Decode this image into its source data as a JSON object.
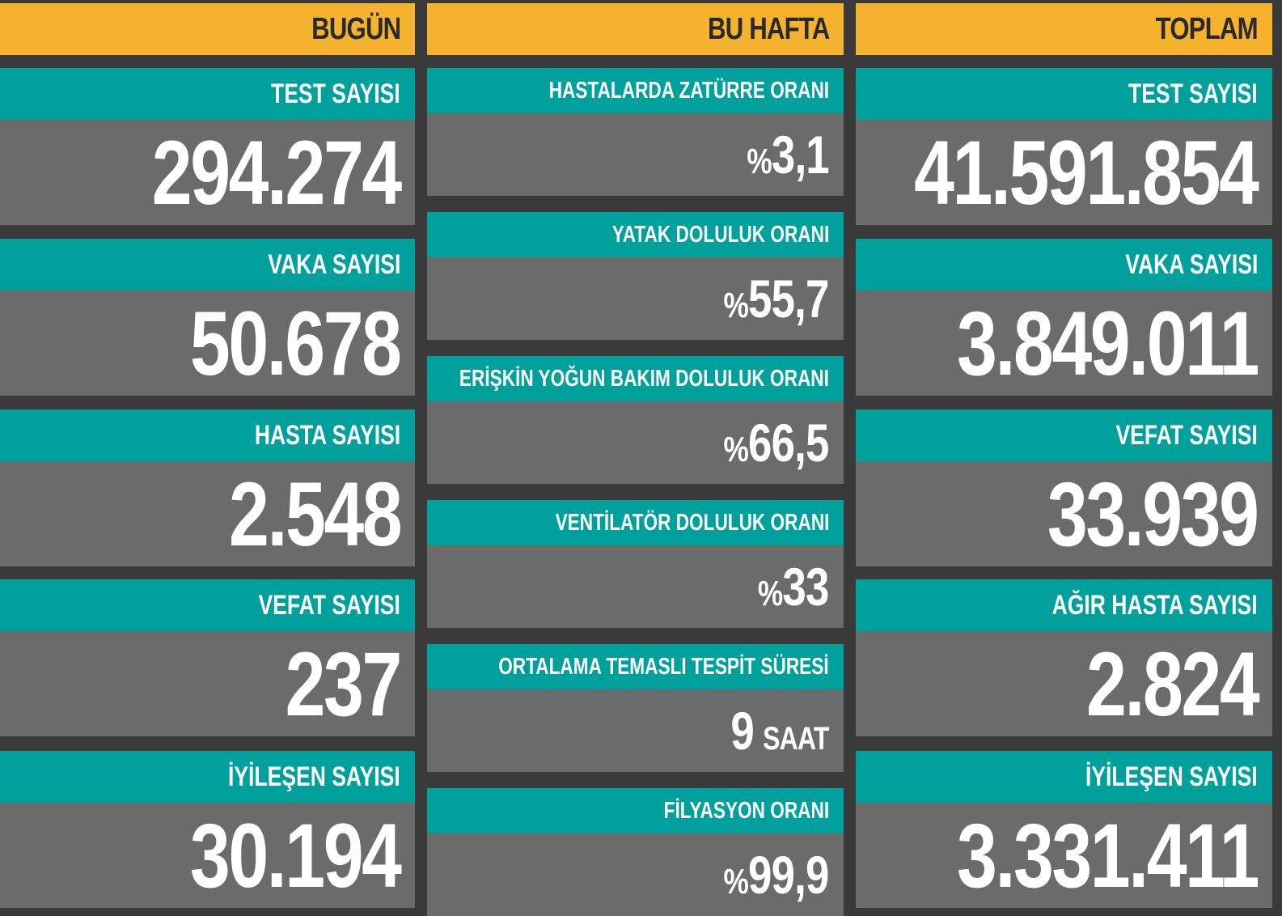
{
  "columns": {
    "today": {
      "title": "BUGÜN",
      "cards": [
        {
          "label": "TEST SAYISI",
          "value": "294.274"
        },
        {
          "label": "VAKA SAYISI",
          "value": "50.678"
        },
        {
          "label": "HASTA SAYISI",
          "value": "2.548"
        },
        {
          "label": "VEFAT SAYISI",
          "value": "237"
        },
        {
          "label": "İYİLEŞEN SAYISI",
          "value": "30.194"
        }
      ]
    },
    "this_week": {
      "title": "BU HAFTA",
      "cards": [
        {
          "label": "HASTALARDA ZATÜRRE ORANI",
          "prefix": "%",
          "value": "3,1"
        },
        {
          "label": "YATAK DOLULUK ORANI",
          "prefix": "%",
          "value": "55,7"
        },
        {
          "label": "ERİŞKİN YOĞUN BAKIM DOLULUK ORANI",
          "prefix": "%",
          "value": "66,5"
        },
        {
          "label": "VENTİLATÖR DOLULUK ORANI",
          "prefix": "%",
          "value": "33"
        },
        {
          "label": "ORTALAMA TEMASLI TESPİT SÜRESİ",
          "value": "9",
          "unit": "SAAT"
        },
        {
          "label": "FİLYASYON ORANI",
          "prefix": "%",
          "value": "99,9"
        }
      ]
    },
    "total": {
      "title": "TOPLAM",
      "cards": [
        {
          "label": "TEST SAYISI",
          "value": "41.591.854"
        },
        {
          "label": "VAKA SAYISI",
          "value": "3.849.011"
        },
        {
          "label": "VEFAT SAYISI",
          "value": "33.939"
        },
        {
          "label": "AĞIR HASTA SAYISI",
          "value": "2.824"
        },
        {
          "label": "İYİLEŞEN SAYISI",
          "value": "3.331.411"
        }
      ]
    }
  },
  "colors": {
    "header": "#f5b22f",
    "label_bg": "#00a19c",
    "value_bg": "#6b6b6b",
    "background": "#3a3a3a"
  }
}
